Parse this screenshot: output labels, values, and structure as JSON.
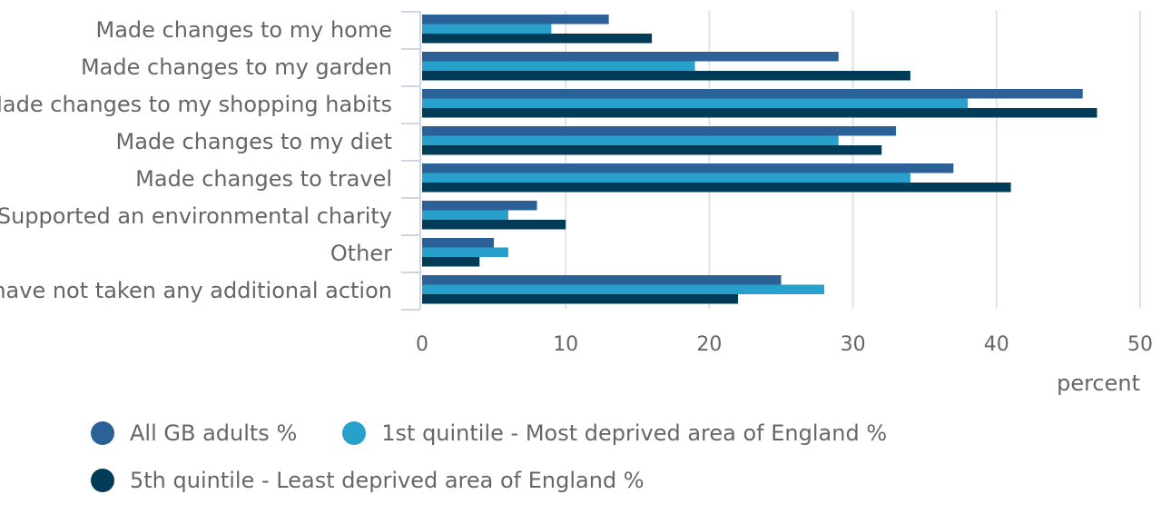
{
  "chart_data": {
    "type": "bar",
    "orientation": "horizontal",
    "categories": [
      "Made changes to my home",
      "Made changes to my garden",
      "Made changes to my shopping habits",
      "Made changes to my diet",
      "Made changes to travel",
      "Supported an environmental charity",
      "Other",
      "I have not taken any additional action"
    ],
    "series": [
      {
        "name": "All GB adults %",
        "color": "#2b6197",
        "values": [
          13,
          29,
          46,
          33,
          37,
          8,
          5,
          25
        ]
      },
      {
        "name": "1st quintile - Most deprived area of England %",
        "color": "#27a0cc",
        "values": [
          9,
          19,
          38,
          29,
          34,
          6,
          6,
          28
        ]
      },
      {
        "name": "5th quintile - Least deprived area of England %",
        "color": "#003c57",
        "values": [
          16,
          34,
          47,
          32,
          41,
          10,
          4,
          22
        ]
      }
    ],
    "xlim": [
      0,
      50
    ],
    "xticks": [
      0,
      10,
      20,
      30,
      40,
      50
    ],
    "xlabel": "percent",
    "grid": "vertical",
    "legend_position": "bottom"
  }
}
